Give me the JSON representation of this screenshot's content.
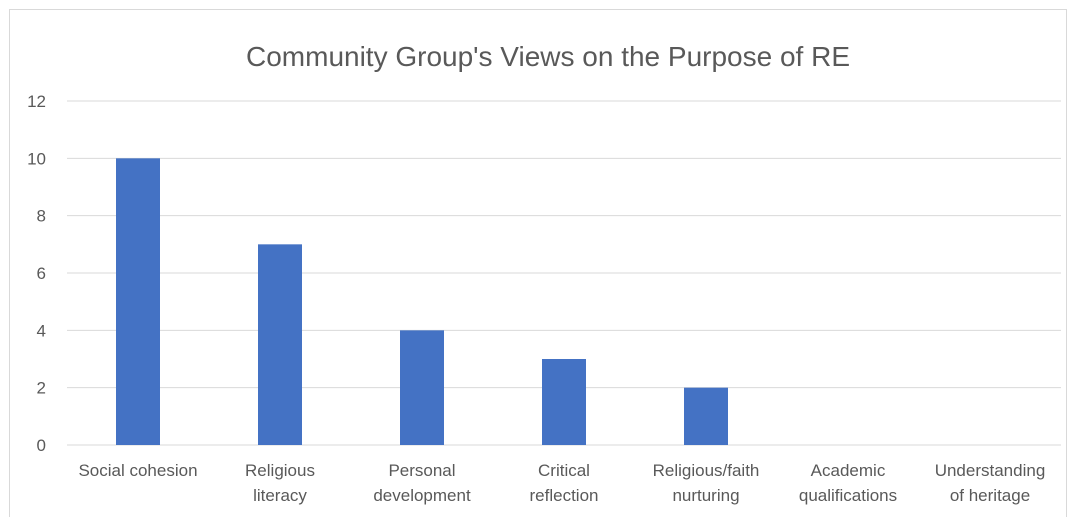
{
  "chart_data": {
    "type": "bar",
    "title": "Community Group's Views on the Purpose of RE",
    "xlabel": "",
    "ylabel": "",
    "categories": [
      [
        "Social cohesion"
      ],
      [
        "Religious",
        "literacy"
      ],
      [
        "Personal",
        "development"
      ],
      [
        "Critical",
        "reflection"
      ],
      [
        "Religious/faith",
        "nurturing"
      ],
      [
        "Academic",
        "qualifications"
      ],
      [
        "Understanding",
        "of heritage"
      ]
    ],
    "values": [
      10,
      7,
      4,
      3,
      2,
      0,
      0
    ],
    "ylim": [
      0,
      12
    ],
    "yticks": [
      "0",
      "2",
      "4",
      "6",
      "8",
      "10",
      "12"
    ],
    "grid": true,
    "legend": "none",
    "colors": {
      "bar": "#4472C4",
      "grid": "#d9d9d9",
      "text": "#595959"
    }
  }
}
